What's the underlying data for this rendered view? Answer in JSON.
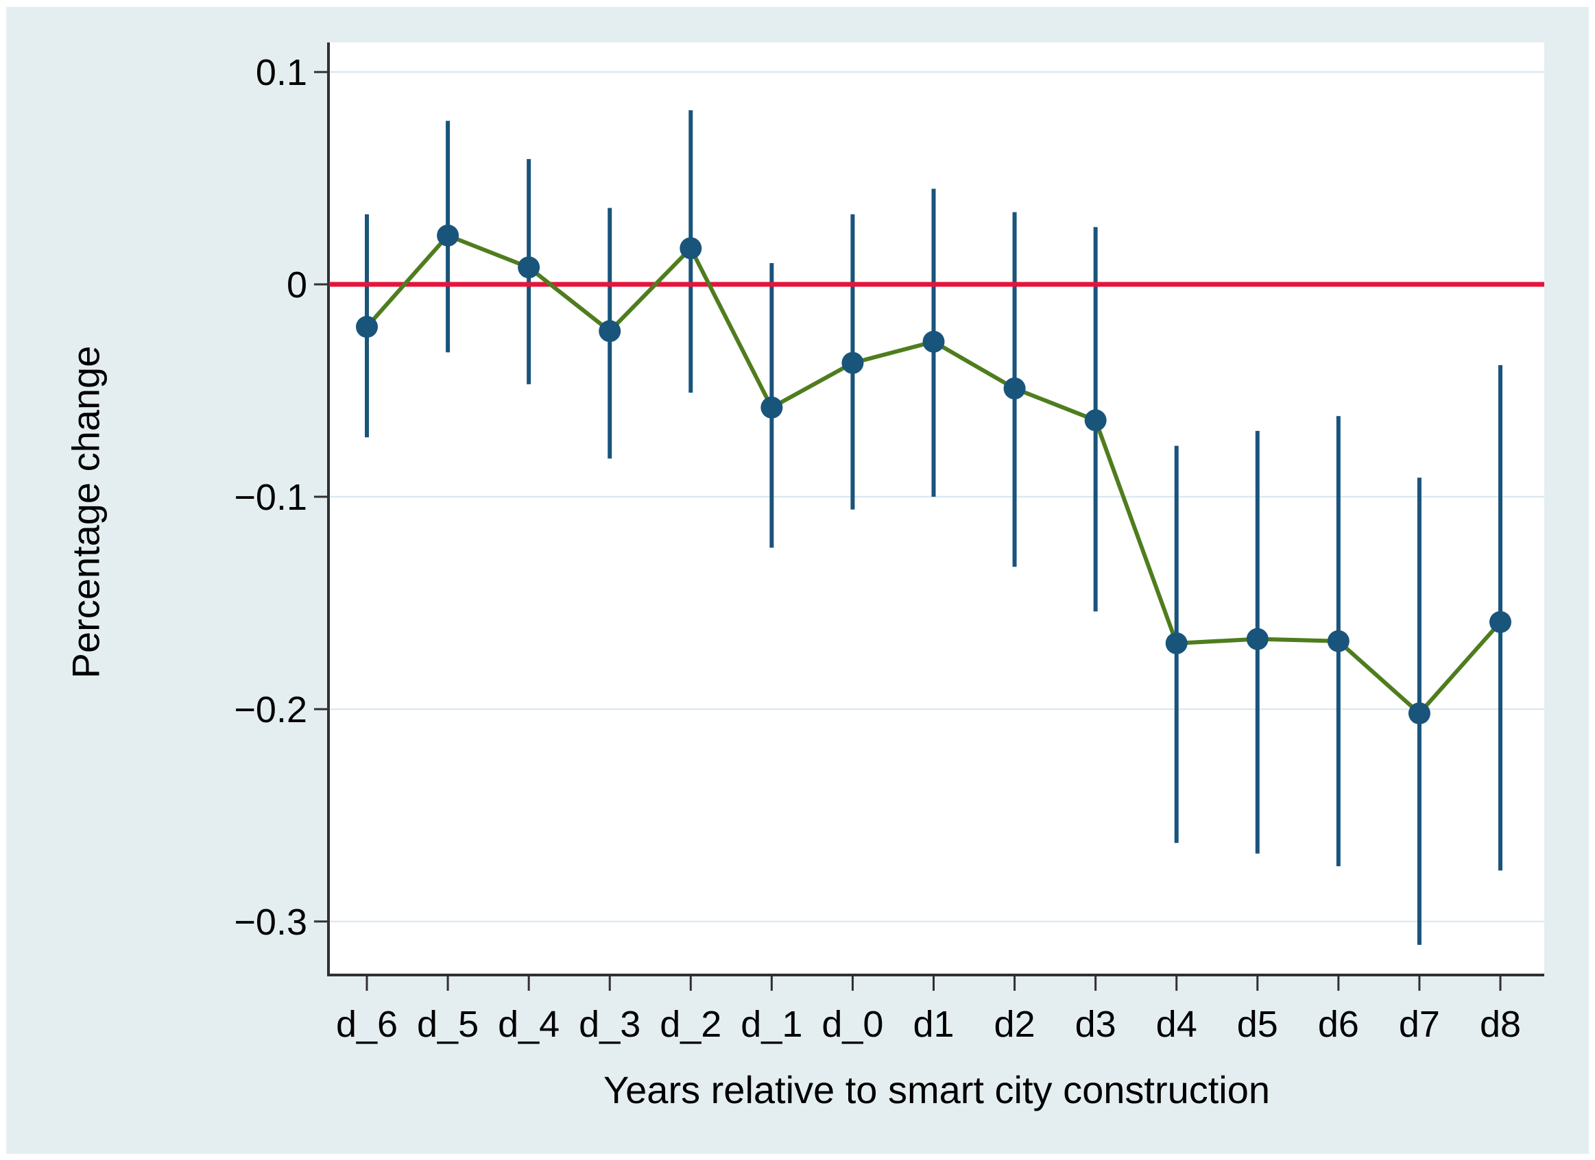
{
  "chart_data": {
    "type": "line",
    "subtype": "event-study-coefficient-plot-with-confidence-intervals",
    "title": "",
    "xlabel": "Years relative to smart city construction",
    "ylabel": "Percentage change",
    "categories": [
      "d_6",
      "d_5",
      "d_4",
      "d_3",
      "d_2",
      "d_1",
      "d_0",
      "d1",
      "d2",
      "d3",
      "d4",
      "d5",
      "d6",
      "d7",
      "d8"
    ],
    "series": [
      {
        "name": "point-estimate",
        "values": [
          -0.02,
          0.023,
          0.008,
          -0.022,
          0.017,
          -0.058,
          -0.037,
          -0.027,
          -0.049,
          -0.064,
          -0.169,
          -0.167,
          -0.168,
          -0.202,
          -0.159
        ]
      }
    ],
    "ci_high": [
      0.033,
      0.077,
      0.059,
      0.036,
      0.082,
      0.01,
      0.033,
      0.045,
      0.034,
      0.027,
      -0.076,
      -0.069,
      -0.062,
      -0.091,
      -0.038
    ],
    "ci_low": [
      -0.072,
      -0.032,
      -0.047,
      -0.082,
      -0.051,
      -0.124,
      -0.106,
      -0.1,
      -0.133,
      -0.154,
      -0.263,
      -0.268,
      -0.274,
      -0.311,
      -0.276
    ],
    "ref_line_y": 0,
    "yticks": [
      {
        "v": 0.1,
        "label": "0.1"
      },
      {
        "v": 0,
        "label": "0"
      },
      {
        "v": -0.1,
        "label": "−0.1"
      },
      {
        "v": -0.2,
        "label": "−0.2"
      },
      {
        "v": -0.3,
        "label": "−0.3"
      }
    ],
    "ylim": [
      -0.3252,
      0.1139
    ],
    "grid": "horizontal",
    "legend": "none",
    "colors": {
      "figure_background": "#e4eef1",
      "plot_background": "#ffffff",
      "gridline": "#dce9f0",
      "axis": "#303030",
      "reference_line_red": "#e5143c",
      "connector_green": "#4f7d1e",
      "marker_blue": "#19547b",
      "ci_bar_blue": "#19547b",
      "text": "#000000"
    }
  }
}
